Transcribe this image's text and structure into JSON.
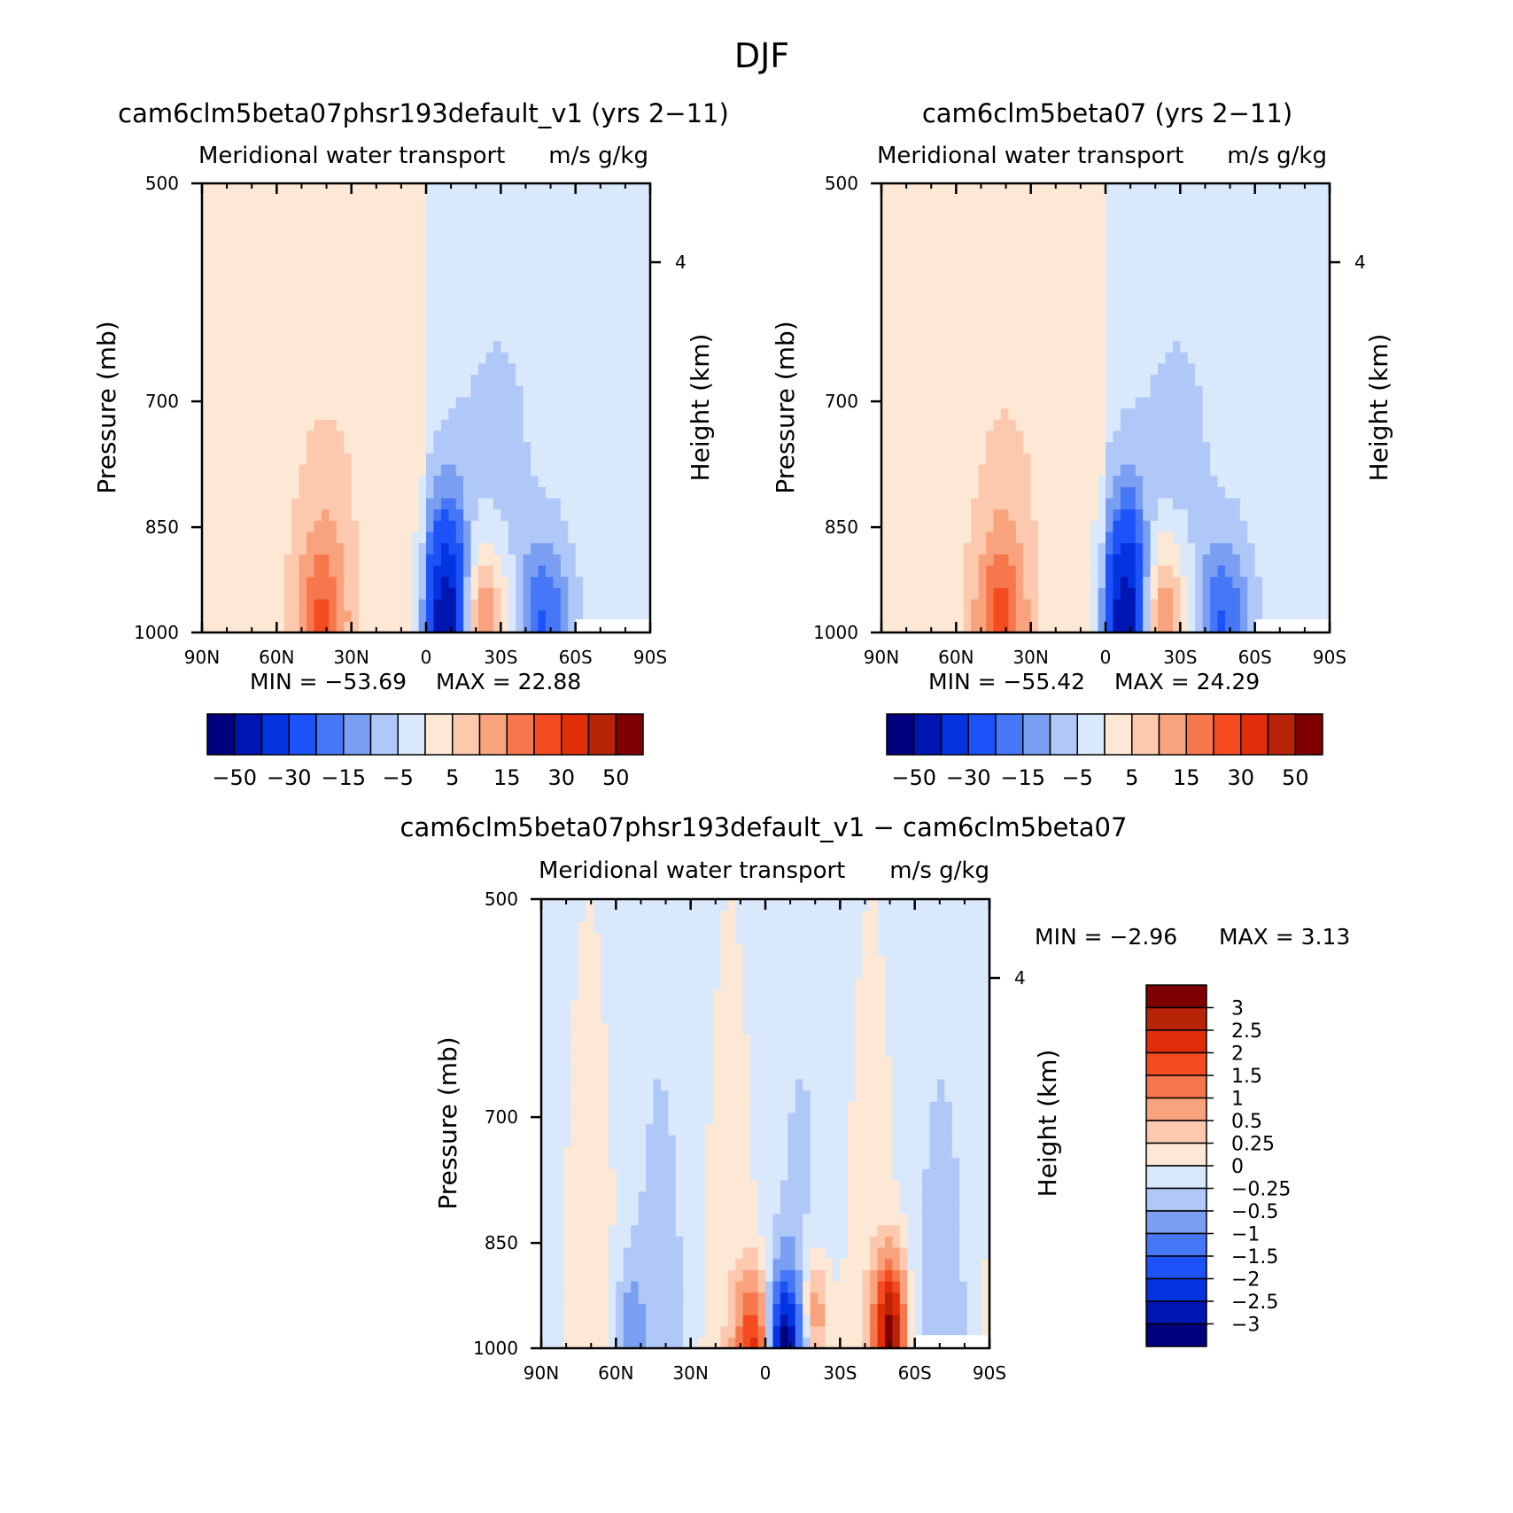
{
  "figure": {
    "title": "DJF",
    "colors": {
      "abs": [
        "#00007f",
        "#0016b3",
        "#0434e0",
        "#1c52f8",
        "#4677f6",
        "#7a9ff2",
        "#b0c8f8",
        "#d9e8fb",
        "#fde8d6",
        "#fcc9ae",
        "#f9a37e",
        "#f7774d",
        "#f44c20",
        "#e02e0a",
        "#b82408",
        "#7f0000"
      ],
      "diff": [
        "#00007f",
        "#0016b3",
        "#0434e0",
        "#1c52f8",
        "#4677f6",
        "#7a9ff2",
        "#b0c8f8",
        "#d9e8fb",
        "#fde8d6",
        "#fcc9ae",
        "#f9a37e",
        "#f7774d",
        "#f44c20",
        "#e02e0a",
        "#b82408",
        "#7f0000"
      ]
    }
  },
  "chart_data": [
    {
      "type": "heatmap",
      "title": "cam6clm5beta07phsr193default_v1 (yrs 2−11)",
      "subtitle": "Meridional water transport",
      "units": "m/s g/kg",
      "ylabel": "Pressure (mb)",
      "y2label": "Height (km)",
      "x_ticks": [
        "90N",
        "60N",
        "30N",
        "0",
        "30S",
        "60S",
        "90S"
      ],
      "y_ticks": [
        "500",
        "700",
        "850",
        "1000"
      ],
      "y2_ticks": [
        "4"
      ],
      "xlim": [
        90,
        -90
      ],
      "ylim": [
        1000,
        500
      ],
      "min_label": "MIN = −53.69",
      "max_label": "MAX =   22.88",
      "min": -53.69,
      "max": 22.88,
      "levels": [
        -50,
        -40,
        -30,
        -20,
        -15,
        -10,
        -5,
        0,
        5,
        10,
        15,
        20,
        30,
        40,
        50
      ],
      "colorbar_labels": [
        "−50",
        "−30",
        "−15",
        "−5",
        "5",
        "15",
        "30",
        "50"
      ],
      "features": [
        {
          "lat": -9,
          "p": 985,
          "value": -53.69
        },
        {
          "lat": 42,
          "p": 980,
          "value": 18
        },
        {
          "lat": -20,
          "p": 985,
          "value": 22.88
        },
        {
          "lat": -47,
          "p": 980,
          "value": -18
        },
        {
          "lat": 65,
          "p": 500,
          "value": 4
        },
        {
          "lat": -45,
          "p": 500,
          "value": -4
        }
      ]
    },
    {
      "type": "heatmap",
      "title": "cam6clm5beta07 (yrs 2−11)",
      "subtitle": "Meridional water transport",
      "units": "m/s g/kg",
      "ylabel": "Pressure (mb)",
      "y2label": "Height (km)",
      "x_ticks": [
        "90N",
        "60N",
        "30N",
        "0",
        "30S",
        "60S",
        "90S"
      ],
      "y_ticks": [
        "500",
        "700",
        "850",
        "1000"
      ],
      "y2_ticks": [
        "4"
      ],
      "xlim": [
        90,
        -90
      ],
      "ylim": [
        1000,
        500
      ],
      "min_label": "MIN = −55.42",
      "max_label": "MAX =   24.29",
      "min": -55.42,
      "max": 24.29,
      "levels": [
        -50,
        -40,
        -30,
        -20,
        -15,
        -10,
        -5,
        0,
        5,
        10,
        15,
        20,
        30,
        40,
        50
      ],
      "colorbar_labels": [
        "−50",
        "−30",
        "−15",
        "−5",
        "5",
        "15",
        "30",
        "50"
      ],
      "features": [
        {
          "lat": -9,
          "p": 985,
          "value": -55.42
        },
        {
          "lat": 42,
          "p": 980,
          "value": 19
        },
        {
          "lat": -20,
          "p": 985,
          "value": 24.29
        },
        {
          "lat": -47,
          "p": 980,
          "value": -18
        },
        {
          "lat": 65,
          "p": 500,
          "value": 4
        },
        {
          "lat": -45,
          "p": 500,
          "value": -4
        }
      ]
    },
    {
      "type": "heatmap",
      "title": "cam6clm5beta07phsr193default_v1 − cam6clm5beta07",
      "subtitle": "Meridional water transport",
      "units": "m/s g/kg",
      "ylabel": "Pressure (mb)",
      "y2label": "Height (km)",
      "x_ticks": [
        "90N",
        "60N",
        "30N",
        "0",
        "30S",
        "60S",
        "90S"
      ],
      "y_ticks": [
        "500",
        "700",
        "850",
        "1000"
      ],
      "y2_ticks": [
        "4"
      ],
      "xlim": [
        90,
        -90
      ],
      "ylim": [
        1000,
        500
      ],
      "min_label": "MIN =    −2.96",
      "max_label": "MAX =     3.13",
      "min": -2.96,
      "max": 3.13,
      "levels": [
        -3,
        -2.5,
        -2,
        -1.5,
        -1,
        -0.5,
        -0.25,
        0,
        0.25,
        0.5,
        1,
        1.5,
        2,
        2.5,
        3
      ],
      "colorbar_labels": [
        "3",
        "2.5",
        "2",
        "1.5",
        "1",
        "0.5",
        "0.25",
        "0",
        "−0.25",
        "−0.5",
        "−1",
        "−1.5",
        "−2",
        "−2.5",
        "−3"
      ],
      "features": [
        {
          "lat": 5,
          "p": 990,
          "value": 2.0
        },
        {
          "lat": -8,
          "p": 990,
          "value": -2.96
        },
        {
          "lat": -50,
          "p": 970,
          "value": 3.13
        },
        {
          "lat": 55,
          "p": 960,
          "value": -0.5
        },
        {
          "lat": -20,
          "p": 950,
          "value": 1.0
        }
      ]
    }
  ]
}
